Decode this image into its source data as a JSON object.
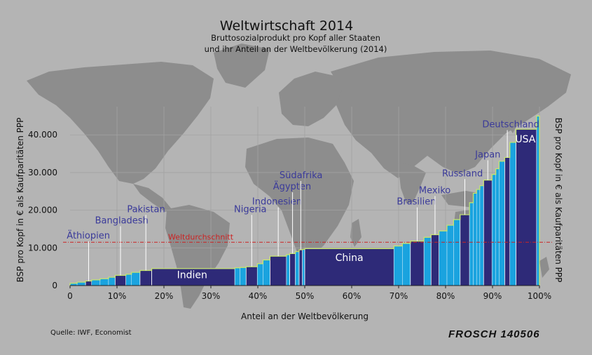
{
  "chart_data": {
    "type": "bar",
    "title": "Weltwirtschaft 2014",
    "subtitle_lines": [
      "Bruttosozialprodukt pro Kopf  aller Staaten",
      "und ihr Anteil an der Weltbevölkerung (2014)"
    ],
    "xlabel": "Anteil an der Weltbevölkerung",
    "ylabel_left": "BSP pro Kopf in € als Kaufparitäten PPP",
    "ylabel_right": "BSP pro Kopf in € als Kaufparitäten PPP",
    "xlim": [
      0,
      100
    ],
    "ylim": [
      0,
      46000
    ],
    "x_ticks": [
      {
        "value": 0,
        "label": "0"
      },
      {
        "value": 10,
        "label": "10%"
      },
      {
        "value": 20,
        "label": "20%"
      },
      {
        "value": 30,
        "label": "30%"
      },
      {
        "value": 40,
        "label": "40%"
      },
      {
        "value": 50,
        "label": "50%"
      },
      {
        "value": 60,
        "label": "60%"
      },
      {
        "value": 70,
        "label": "70%"
      },
      {
        "value": 80,
        "label": "80%"
      },
      {
        "value": 90,
        "label": "90%"
      },
      {
        "value": 100,
        "label": "100%"
      }
    ],
    "y_ticks": [
      {
        "value": 0,
        "label": "0"
      },
      {
        "value": 10000,
        "label": "10.000"
      },
      {
        "value": 20000,
        "label": "20.000"
      },
      {
        "value": 30000,
        "label": "30.000"
      },
      {
        "value": 40000,
        "label": "40.000"
      }
    ],
    "reference_line": {
      "label": "Weltdurchschnitt",
      "value": 11500
    },
    "countries": [
      {
        "name": "Äthiopien",
        "x0": 3.3,
        "x1": 4.6,
        "value": 1200,
        "label_x": 3.9,
        "label_y": 12500
      },
      {
        "name": "Bangladesh",
        "x0": 9.6,
        "x1": 11.9,
        "value": 2700,
        "label_x": 11.0,
        "label_y": 16500
      },
      {
        "name": "Pakistan",
        "x0": 14.9,
        "x1": 17.4,
        "value": 4000,
        "label_x": 16.2,
        "label_y": 19500
      },
      {
        "name": "Indien",
        "x0": 17.4,
        "x1": 35.1,
        "value": 4500,
        "label_x": 26.0,
        "label_y": 2000,
        "inside": true
      },
      {
        "name": "Nigeria",
        "x0": 37.5,
        "x1": 39.9,
        "value": 5000,
        "label_x": 38.4,
        "label_y": 19500
      },
      {
        "name": "Indonesien",
        "x0": 42.6,
        "x1": 46.1,
        "value": 7800,
        "label_x": 44.1,
        "label_y": 21500
      },
      {
        "name": "Ägypten",
        "x0": 46.8,
        "x1": 48.0,
        "value": 8500,
        "label_x": 47.3,
        "label_y": 25500
      },
      {
        "name": "Südafrika",
        "x0": 48.8,
        "x1": 49.5,
        "value": 9500,
        "label_x": 49.2,
        "label_y": 28500
      },
      {
        "name": "China",
        "x0": 50.0,
        "x1": 69.0,
        "value": 9800,
        "label_x": 59.5,
        "label_y": 6500,
        "inside": true
      },
      {
        "name": "Brasilien",
        "x0": 72.5,
        "x1": 75.4,
        "value": 11800,
        "label_x": 73.8,
        "label_y": 21500
      },
      {
        "name": "Mexiko",
        "x0": 76.9,
        "x1": 78.6,
        "value": 13500,
        "label_x": 77.7,
        "label_y": 24500
      },
      {
        "name": "Russland",
        "x0": 83.1,
        "x1": 85.1,
        "value": 18800,
        "label_x": 83.6,
        "label_y": 29000
      },
      {
        "name": "Japan",
        "x0": 88.1,
        "x1": 89.9,
        "value": 28000,
        "label_x": 89.0,
        "label_y": 34000
      },
      {
        "name": "Deutschland",
        "x0": 92.6,
        "x1": 93.7,
        "value": 34000,
        "label_x": 93.9,
        "label_y": 42000
      },
      {
        "name": "USA",
        "x0": 95.0,
        "x1": 99.4,
        "value": 41500,
        "label_x": 97.0,
        "label_y": 38000,
        "inside": true
      }
    ],
    "others": [
      {
        "x0": 0.0,
        "x1": 1.5,
        "value": 600
      },
      {
        "x0": 1.5,
        "x1": 3.3,
        "value": 900
      },
      {
        "x0": 4.6,
        "x1": 6.4,
        "value": 1500
      },
      {
        "x0": 6.4,
        "x1": 8.2,
        "value": 1800
      },
      {
        "x0": 8.2,
        "x1": 9.6,
        "value": 2200
      },
      {
        "x0": 11.9,
        "x1": 13.1,
        "value": 3000
      },
      {
        "x0": 13.1,
        "x1": 14.9,
        "value": 3500
      },
      {
        "x0": 35.1,
        "x1": 36.2,
        "value": 4700
      },
      {
        "x0": 36.2,
        "x1": 37.5,
        "value": 4800
      },
      {
        "x0": 39.9,
        "x1": 41.1,
        "value": 5800
      },
      {
        "x0": 41.1,
        "x1": 42.6,
        "value": 6800
      },
      {
        "x0": 46.1,
        "x1": 46.8,
        "value": 8200
      },
      {
        "x0": 48.0,
        "x1": 48.8,
        "value": 9000
      },
      {
        "x0": 49.5,
        "x1": 50.0,
        "value": 9600
      },
      {
        "x0": 69.0,
        "x1": 70.8,
        "value": 10500
      },
      {
        "x0": 70.8,
        "x1": 72.5,
        "value": 11200
      },
      {
        "x0": 75.4,
        "x1": 76.9,
        "value": 12800
      },
      {
        "x0": 78.6,
        "x1": 80.3,
        "value": 14500
      },
      {
        "x0": 80.3,
        "x1": 81.7,
        "value": 16000
      },
      {
        "x0": 81.7,
        "x1": 83.1,
        "value": 17500
      },
      {
        "x0": 85.1,
        "x1": 85.9,
        "value": 22000
      },
      {
        "x0": 85.9,
        "x1": 86.6,
        "value": 24500
      },
      {
        "x0": 86.6,
        "x1": 87.3,
        "value": 25500
      },
      {
        "x0": 87.3,
        "x1": 88.1,
        "value": 26500
      },
      {
        "x0": 89.9,
        "x1": 90.7,
        "value": 29500
      },
      {
        "x0": 90.7,
        "x1": 91.4,
        "value": 31000
      },
      {
        "x0": 91.4,
        "x1": 92.6,
        "value": 33000
      },
      {
        "x0": 93.7,
        "x1": 95.0,
        "value": 38000
      },
      {
        "x0": 99.4,
        "x1": 100.0,
        "value": 45000
      }
    ],
    "colors": {
      "background": "#b4b4b4",
      "map": "#8d8d8d",
      "named_bar": "#2e2a78",
      "other_bar": "#1aa3df",
      "outline": "#c8e86a",
      "reference_line": "#cc2222",
      "label_text": "#3a3a9a",
      "grid": "#a2a2a2"
    }
  },
  "footer": {
    "source": "Quelle: IWF, Economist",
    "signature": "FROSCH 140506"
  }
}
